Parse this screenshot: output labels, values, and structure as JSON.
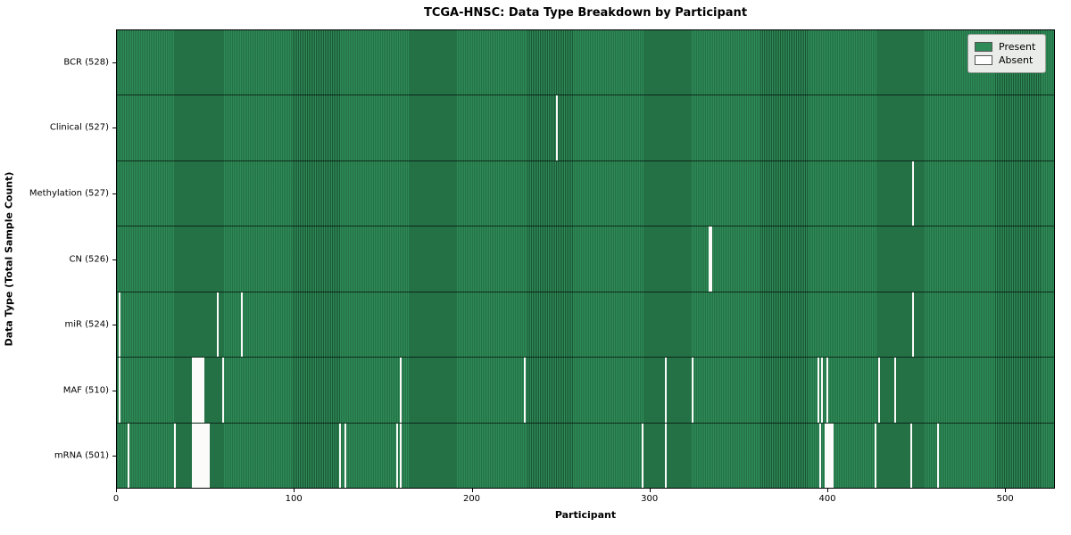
{
  "chart_data": {
    "type": "heatmap",
    "title": "TCGA-HNSC: Data Type Breakdown by Participant",
    "xlabel": "Participant",
    "ylabel": "Data Type (Total Sample Count)",
    "x_ticks": [
      "0",
      "100",
      "200",
      "300",
      "400",
      "500"
    ],
    "x_tick_values": [
      0,
      100,
      200,
      300,
      400,
      500
    ],
    "xlim": [
      0,
      528
    ],
    "n_participants": 528,
    "grid": false,
    "legend": {
      "position": "upper right",
      "entries": [
        {
          "label": "Present",
          "color": "#2e8b57"
        },
        {
          "label": "Absent",
          "color": "#ffffff"
        }
      ]
    },
    "colors": {
      "present": "#2e8b57",
      "absent": "#ffffff",
      "cell_edge": "#1e3d2a",
      "row_separator": "#1a1a1a"
    },
    "rows": [
      {
        "label": "BCR (528)",
        "data_type": "BCR",
        "total_samples": 528,
        "absent_participants": []
      },
      {
        "label": "Clinical (527)",
        "data_type": "Clinical",
        "total_samples": 527,
        "absent_participants": [
          247
        ]
      },
      {
        "label": "Methylation (527)",
        "data_type": "Methylation",
        "total_samples": 527,
        "absent_participants": [
          447
        ]
      },
      {
        "label": "CN (526)",
        "data_type": "CN",
        "total_samples": 526,
        "absent_participants": [
          333,
          334
        ]
      },
      {
        "label": "miR (524)",
        "data_type": "miR",
        "total_samples": 524,
        "absent_participants": [
          1,
          56,
          70,
          447
        ]
      },
      {
        "label": "MAF (510)",
        "data_type": "MAF",
        "total_samples": 510,
        "absent_participants": [
          1,
          42,
          43,
          44,
          45,
          46,
          47,
          48,
          59,
          159,
          229,
          308,
          323,
          394,
          396,
          399,
          428,
          437
        ]
      },
      {
        "label": "mRNA (501)",
        "data_type": "mRNA",
        "total_samples": 501,
        "absent_participants": [
          6,
          32,
          42,
          43,
          44,
          45,
          46,
          47,
          48,
          49,
          50,
          51,
          125,
          128,
          157,
          159,
          295,
          308,
          395,
          398,
          399,
          400,
          401,
          402,
          426,
          446,
          461
        ]
      }
    ]
  }
}
